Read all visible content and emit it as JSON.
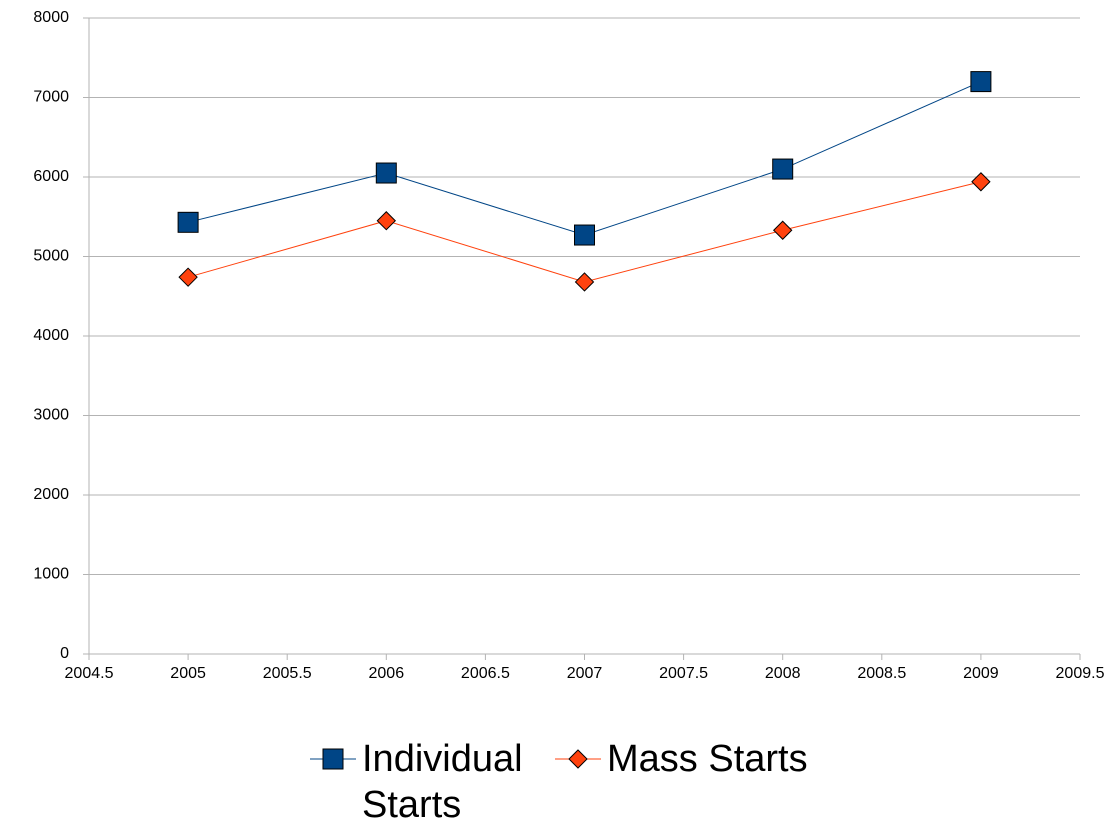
{
  "chart_data": {
    "type": "line",
    "xlim": [
      2004.5,
      2009.5
    ],
    "xticks": [
      2004.5,
      2005,
      2005.5,
      2006,
      2006.5,
      2007,
      2007.5,
      2008,
      2008.5,
      2009,
      2009.5
    ],
    "ylim": [
      0,
      8000
    ],
    "yticks": [
      0,
      1000,
      2000,
      3000,
      4000,
      5000,
      6000,
      7000,
      8000
    ],
    "grid": true,
    "legend": "bottom",
    "x": [
      2005,
      2006,
      2007,
      2008,
      2009
    ],
    "series": [
      {
        "name": "Individual Starts",
        "color": "#004586",
        "marker": "square",
        "values": [
          5430,
          6050,
          5270,
          6100,
          7200
        ]
      },
      {
        "name": "Mass Starts",
        "color": "#ff420e",
        "marker": "diamond",
        "values": [
          4740,
          5450,
          4680,
          5330,
          5940
        ]
      }
    ]
  }
}
